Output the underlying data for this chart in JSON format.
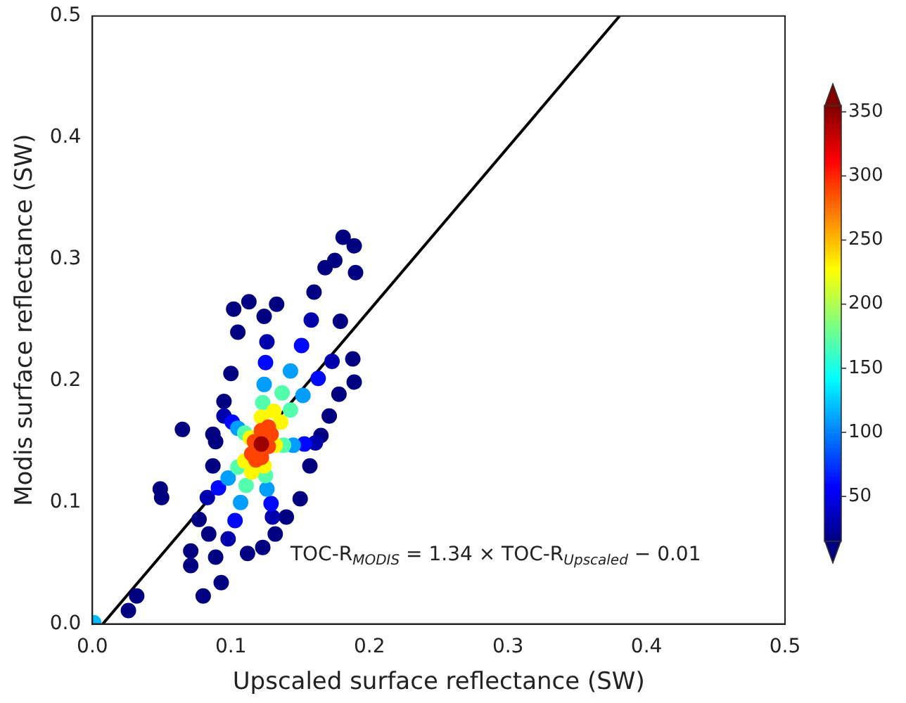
{
  "chart_data": {
    "type": "scatter",
    "xlabel": "Upscaled surface reflectance (SW)",
    "ylabel": "Modis surface reflectance (SW)",
    "xlim": [
      0,
      0.5
    ],
    "ylim": [
      0,
      0.5
    ],
    "xticks": [
      {
        "value": 0,
        "label": "0.0"
      },
      0.1,
      0.2,
      0.3,
      0.4,
      0.5
    ],
    "yticks": [
      {
        "value": 0,
        "label": "0.0"
      },
      0.1,
      0.2,
      0.3,
      0.4,
      0.5
    ],
    "clim": [
      15,
      355
    ],
    "cticks": [
      50,
      100,
      150,
      200,
      250,
      300,
      350
    ],
    "annotations": [
      "TOC-R$_{MODIS}$ = 1.34 × TOC-R$_{Upscaled}$ − 0.01"
    ],
    "series": [
      {
        "marker": "circle",
        "x": [
          0.001,
          0.026,
          0.032,
          0.049,
          0.05,
          0.065,
          0.077,
          0.084,
          0.071,
          0.071,
          0.08,
          0.093,
          0.089,
          0.087,
          0.087,
          0.112,
          0.123,
          0.132,
          0.14,
          0.15,
          0.157,
          0.178,
          0.171,
          0.165,
          0.188,
          0.179,
          0.168,
          0.175,
          0.16,
          0.133,
          0.124,
          0.105,
          0.1,
          0.095,
          0.089,
          0.102,
          0.113,
          0.181,
          0.189,
          0.19,
          0.189,
          0.158,
          0.098,
          0.161,
          0.095,
          0.173,
          0.083,
          0.126,
          0.13,
          0.151,
          0.103,
          0.153,
          0.101,
          0.163,
          0.091,
          0.125,
          0.129,
          0.143,
          0.107,
          0.145,
          0.105,
          0.152,
          0.098,
          0.124,
          0.126,
          0.137,
          0.111,
          0.138,
          0.11,
          0.143,
          0.105,
          0.123,
          0.125,
          0.131,
          0.115,
          0.132,
          0.114,
          0.136,
          0.11,
          0.122,
          0.124,
          0.127,
          0.118,
          0.127,
          0.117,
          0.129,
          0.115,
          0.122,
          0.122,
          0.122
        ],
        "values": [
          0.001,
          0.011,
          0.023,
          0.111,
          0.104,
          0.16,
          0.086,
          0.074,
          0.06,
          0.048,
          0.023,
          0.034,
          0.055,
          0.156,
          0.13,
          0.058,
          0.063,
          0.074,
          0.088,
          0.103,
          0.13,
          0.189,
          0.171,
          0.155,
          0.218,
          0.249,
          0.293,
          0.299,
          0.273,
          0.263,
          0.253,
          0.24,
          0.206,
          0.183,
          0.15,
          0.259,
          0.265,
          0.318,
          0.311,
          0.289,
          0.199,
          0.25,
          0.07,
          0.149,
          0.171,
          0.216,
          0.104,
          0.232,
          0.088,
          0.229,
          0.085,
          0.148,
          0.166,
          0.202,
          0.112,
          0.215,
          0.099,
          0.208,
          0.1,
          0.147,
          0.161,
          0.188,
          0.12,
          0.197,
          0.111,
          0.19,
          0.114,
          0.147,
          0.157,
          0.176,
          0.129,
          0.182,
          0.122,
          0.175,
          0.125,
          0.147,
          0.153,
          0.166,
          0.134,
          0.17,
          0.13,
          0.162,
          0.135,
          0.146,
          0.15,
          0.156,
          0.14,
          0.159,
          0.137,
          0.148
        ],
        "cvalues": [
          120,
          15,
          15,
          15,
          15,
          15,
          15,
          15,
          15,
          15,
          15,
          15,
          15,
          15,
          15,
          15,
          15,
          15,
          15,
          15,
          15,
          15,
          15,
          15,
          15,
          15,
          15,
          15,
          15,
          15,
          15,
          15,
          15,
          15,
          15,
          15,
          15,
          15,
          15,
          15,
          15,
          30,
          30,
          30,
          30,
          30,
          30,
          30,
          30,
          60,
          60,
          60,
          60,
          60,
          60,
          60,
          60,
          110,
          110,
          110,
          110,
          110,
          110,
          110,
          110,
          170,
          170,
          170,
          170,
          170,
          170,
          170,
          170,
          230,
          230,
          230,
          230,
          230,
          230,
          230,
          230,
          290,
          290,
          290,
          290,
          290,
          290,
          290,
          290,
          345
        ],
        "colors": [
          "#00bbff",
          "#000080",
          "#000080",
          "#000080",
          "#000080",
          "#000080",
          "#000080",
          "#000080",
          "#000080",
          "#000080",
          "#000080",
          "#000080",
          "#000080",
          "#000080",
          "#000080",
          "#000080",
          "#000080",
          "#000080",
          "#000080",
          "#000080",
          "#000080",
          "#000080",
          "#000080",
          "#000080",
          "#000080",
          "#000080",
          "#000080",
          "#000080",
          "#000080",
          "#000080",
          "#000080",
          "#000080",
          "#000080",
          "#000080",
          "#000080",
          "#000080",
          "#000080",
          "#000080",
          "#000080",
          "#000080",
          "#000080",
          "#0000ac",
          "#0000ac",
          "#0000ac",
          "#0000ac",
          "#0000ac",
          "#0000ac",
          "#0000ac",
          "#0000ac",
          "#0007ff",
          "#0007ff",
          "#0007ff",
          "#0007ff",
          "#0007ff",
          "#0007ff",
          "#0007ff",
          "#0007ff",
          "#009eff",
          "#009eff",
          "#009eff",
          "#009eff",
          "#009eff",
          "#009eff",
          "#009eff",
          "#009eff",
          "#53ffac",
          "#53ffac",
          "#53ffac",
          "#53ffac",
          "#53ffac",
          "#53ffac",
          "#53ffac",
          "#53ffac",
          "#fff800",
          "#fff800",
          "#fff800",
          "#fff800",
          "#fff800",
          "#fff800",
          "#fff800",
          "#fff800",
          "#ff4400",
          "#ff4400",
          "#ff4400",
          "#ff4400",
          "#ff4400",
          "#ff4400",
          "#ff4400",
          "#ff4400",
          "#9e0000"
        ]
      },
      {
        "type": "line",
        "color": "#000000",
        "marker": "none",
        "line_style": "solid",
        "x": [
          0.0075,
          0.3806
        ],
        "values": [
          0,
          0.5
        ]
      }
    ]
  }
}
